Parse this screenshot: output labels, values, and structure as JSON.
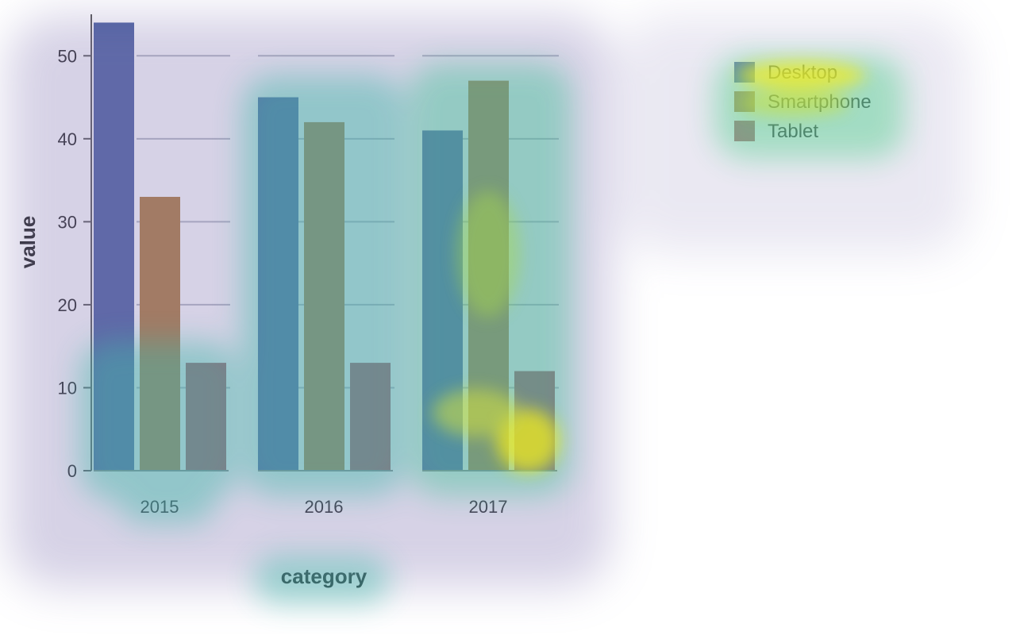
{
  "chart_data": {
    "type": "bar",
    "title": "",
    "xlabel": "category",
    "ylabel": "value",
    "categories": [
      "2015",
      "2016",
      "2017"
    ],
    "series": [
      {
        "name": "Desktop",
        "values": [
          54,
          45,
          41
        ],
        "color": "#4a5fa0"
      },
      {
        "name": "Smartphone",
        "values": [
          33,
          42,
          47
        ],
        "color": "#b07a3a"
      },
      {
        "name": "Tablet",
        "values": [
          13,
          13,
          12
        ],
        "color": "#a8555a"
      }
    ],
    "ylim": [
      0,
      55
    ],
    "yticks": [
      0,
      10,
      20,
      30,
      40,
      50
    ],
    "grid": true,
    "legend_position": "top-right",
    "overlay": "attention heatmap (purple-teal-yellow)"
  }
}
